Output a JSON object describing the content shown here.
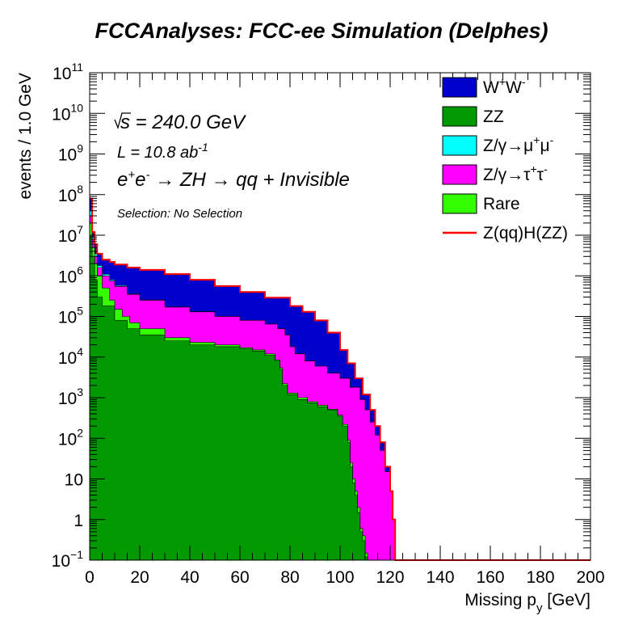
{
  "chart_data": {
    "type": "stacked-histogram",
    "title": "FCCAnalyses: FCC-ee Simulation (Delphes)",
    "xlabel": "Missing p",
    "xlabel_sub": "y",
    "xlabel_unit": " [GeV]",
    "ylabel": "events / 1.0 GeV",
    "yscale": "log",
    "xlim": [
      0,
      200
    ],
    "ylim": [
      0.1,
      100000000000
    ],
    "x_ticks": [
      "0",
      "20",
      "40",
      "60",
      "80",
      "100",
      "120",
      "140",
      "160",
      "180",
      "200"
    ],
    "y_ticks": [
      {
        "base": "10",
        "exp": "−1"
      },
      {
        "base": "1",
        "exp": ""
      },
      {
        "base": "10",
        "exp": ""
      },
      {
        "base": "10",
        "exp": "2"
      },
      {
        "base": "10",
        "exp": "3"
      },
      {
        "base": "10",
        "exp": "4"
      },
      {
        "base": "10",
        "exp": "5"
      },
      {
        "base": "10",
        "exp": "6"
      },
      {
        "base": "10",
        "exp": "7"
      },
      {
        "base": "10",
        "exp": "8"
      },
      {
        "base": "10",
        "exp": "9"
      },
      {
        "base": "10",
        "exp": "10"
      },
      {
        "base": "10",
        "exp": "11"
      }
    ],
    "annotations": {
      "sqrt_s": "s = 240.0 GeV",
      "lumi_prefix": "L = 10.8 ab",
      "lumi_exp": "-1",
      "process": "e",
      "process_sup1": "+",
      "process_mid": "e",
      "process_sup2": "-",
      "process_rest": " → ZH → qq + Invisible",
      "selection": "Selection: No Selection"
    },
    "legend_position": "top-right",
    "legend": [
      {
        "id": "ww",
        "label": "W",
        "sup1": "+",
        "mid": "W",
        "sup2": "-",
        "color": "#0000cc",
        "style": "fill"
      },
      {
        "id": "zz",
        "label": "ZZ",
        "color": "#009900",
        "style": "fill"
      },
      {
        "id": "zmumu",
        "label": "Z/γ→μ",
        "sup1": "+",
        "mid": "μ",
        "sup2": "-",
        "color": "#00ffff",
        "style": "fill"
      },
      {
        "id": "ztautau",
        "label": "Z/γ→τ",
        "sup1": "+",
        "mid": "τ",
        "sup2": "-",
        "color": "#ff00ff",
        "style": "fill"
      },
      {
        "id": "rare",
        "label": "Rare",
        "color": "#33ff00",
        "style": "fill"
      },
      {
        "id": "signal",
        "label": "Z(qq)H(ZZ)",
        "color": "#ff0000",
        "style": "line"
      }
    ],
    "series": [
      {
        "id": "zz",
        "color": "#009900",
        "points": [
          [
            0,
            10000000
          ],
          [
            1,
            3000000
          ],
          [
            2,
            800000
          ],
          [
            3,
            300000
          ],
          [
            5,
            180000
          ],
          [
            10,
            80000
          ],
          [
            15,
            50000
          ],
          [
            20,
            35000
          ],
          [
            30,
            25000
          ],
          [
            40,
            20000
          ],
          [
            50,
            18000
          ],
          [
            60,
            16000
          ],
          [
            65,
            14000
          ],
          [
            70,
            11000
          ],
          [
            74,
            8000
          ],
          [
            76,
            5000
          ],
          [
            77,
            2000
          ],
          [
            79,
            1200
          ],
          [
            83,
            900
          ],
          [
            87,
            750
          ],
          [
            91,
            600
          ],
          [
            95,
            500
          ],
          [
            99,
            350
          ],
          [
            101,
            200
          ],
          [
            103,
            80
          ],
          [
            104,
            20
          ],
          [
            105,
            8
          ],
          [
            106,
            4
          ],
          [
            107,
            1.5
          ],
          [
            108,
            0.5
          ],
          [
            109,
            0.3
          ],
          [
            110,
            0.12
          ],
          [
            111,
            0.1
          ]
        ]
      },
      {
        "id": "rare",
        "color": "#33ff00",
        "points": [
          [
            0,
            20000000
          ],
          [
            1,
            5000000
          ],
          [
            2,
            2000000
          ],
          [
            3,
            1000000
          ],
          [
            5,
            500000
          ],
          [
            8,
            250000
          ],
          [
            10,
            150000
          ],
          [
            13,
            100000
          ],
          [
            16,
            70000
          ],
          [
            20,
            50000
          ],
          [
            30,
            30000
          ],
          [
            40,
            23000
          ],
          [
            50,
            20000
          ],
          [
            60,
            17000
          ],
          [
            65,
            15000
          ],
          [
            70,
            12000
          ],
          [
            74,
            8500
          ],
          [
            76,
            5500
          ],
          [
            77,
            2200
          ],
          [
            79,
            1300
          ],
          [
            83,
            1000
          ],
          [
            87,
            800
          ],
          [
            91,
            650
          ],
          [
            95,
            520
          ],
          [
            99,
            370
          ],
          [
            101,
            220
          ],
          [
            103,
            90
          ],
          [
            104,
            25
          ],
          [
            105,
            10
          ],
          [
            106,
            5
          ],
          [
            107,
            2
          ],
          [
            108,
            0.6
          ],
          [
            109,
            0.4
          ],
          [
            110,
            0.15
          ],
          [
            111,
            0.1
          ]
        ]
      },
      {
        "id": "ztautau",
        "color": "#ff00ff",
        "points": [
          [
            0,
            30000000
          ],
          [
            1,
            8000000
          ],
          [
            2,
            3000000
          ],
          [
            3,
            1600000
          ],
          [
            5,
            1000000
          ],
          [
            8,
            750000
          ],
          [
            10,
            550000
          ],
          [
            15,
            350000
          ],
          [
            20,
            250000
          ],
          [
            30,
            170000
          ],
          [
            40,
            130000
          ],
          [
            50,
            100000
          ],
          [
            60,
            80000
          ],
          [
            70,
            65000
          ],
          [
            75,
            50000
          ],
          [
            78,
            35000
          ],
          [
            80,
            18000
          ],
          [
            82,
            12000
          ],
          [
            86,
            8000
          ],
          [
            90,
            6000
          ],
          [
            95,
            4000
          ],
          [
            100,
            3000
          ],
          [
            104,
            1800
          ],
          [
            108,
            900
          ],
          [
            110,
            500
          ],
          [
            112,
            250
          ],
          [
            114,
            120
          ],
          [
            116,
            50
          ],
          [
            118,
            15
          ],
          [
            120,
            5
          ],
          [
            121,
            1
          ],
          [
            122,
            0.1
          ]
        ]
      },
      {
        "id": "zmumu",
        "color": "#00ffff",
        "points": [
          [
            0,
            40000000
          ],
          [
            1,
            9000000
          ],
          [
            2,
            3500000
          ],
          [
            3,
            1800000
          ],
          [
            5,
            1100000
          ],
          [
            8,
            800000
          ],
          [
            10,
            580000
          ],
          [
            15,
            360000
          ],
          [
            20,
            255000
          ],
          [
            30,
            172000
          ],
          [
            40,
            131000
          ],
          [
            50,
            101000
          ],
          [
            60,
            80500
          ],
          [
            70,
            65300
          ],
          [
            75,
            50200
          ],
          [
            78,
            35100
          ],
          [
            80,
            18100
          ],
          [
            82,
            12050
          ],
          [
            86,
            8030
          ],
          [
            90,
            6020
          ],
          [
            95,
            4010
          ],
          [
            100,
            3005
          ],
          [
            104,
            1805
          ],
          [
            108,
            902
          ],
          [
            110,
            501
          ],
          [
            112,
            251
          ],
          [
            114,
            120
          ],
          [
            116,
            50
          ],
          [
            118,
            15
          ],
          [
            120,
            5
          ],
          [
            121,
            1
          ],
          [
            122,
            0.1
          ]
        ]
      },
      {
        "id": "ww",
        "color": "#0000cc",
        "points": [
          [
            0,
            80000000
          ],
          [
            1,
            12000000
          ],
          [
            2,
            6000000
          ],
          [
            3,
            3500000
          ],
          [
            5,
            2500000
          ],
          [
            8,
            2200000
          ],
          [
            10,
            1900000
          ],
          [
            15,
            1600000
          ],
          [
            20,
            1400000
          ],
          [
            30,
            1100000
          ],
          [
            40,
            800000
          ],
          [
            50,
            560000
          ],
          [
            60,
            400000
          ],
          [
            70,
            290000
          ],
          [
            80,
            180000
          ],
          [
            85,
            130000
          ],
          [
            90,
            80000
          ],
          [
            95,
            40000
          ],
          [
            100,
            15000
          ],
          [
            103,
            7000
          ],
          [
            106,
            3000
          ],
          [
            109,
            1200
          ],
          [
            112,
            500
          ],
          [
            114,
            200
          ],
          [
            116,
            80
          ],
          [
            118,
            20
          ],
          [
            120,
            5
          ],
          [
            121,
            1
          ],
          [
            122,
            0.1
          ]
        ]
      }
    ],
    "signal_line": {
      "id": "signal",
      "color": "#ff0000",
      "points": [
        [
          0,
          80000000
        ],
        [
          1,
          12000000
        ],
        [
          2,
          6000000
        ],
        [
          3,
          3500000
        ],
        [
          5,
          2500000
        ],
        [
          8,
          2200000
        ],
        [
          10,
          1900000
        ],
        [
          15,
          1600000
        ],
        [
          20,
          1400000
        ],
        [
          30,
          1100000
        ],
        [
          40,
          800000
        ],
        [
          50,
          560000
        ],
        [
          60,
          400000
        ],
        [
          70,
          290000
        ],
        [
          80,
          180000
        ],
        [
          85,
          130000
        ],
        [
          90,
          80000
        ],
        [
          95,
          40000
        ],
        [
          100,
          15000
        ],
        [
          103,
          7000
        ],
        [
          106,
          3000
        ],
        [
          109,
          1200
        ],
        [
          112,
          500
        ],
        [
          114,
          200
        ],
        [
          116,
          80
        ],
        [
          118,
          20
        ],
        [
          120,
          5
        ],
        [
          121,
          1
        ],
        [
          122,
          0.1
        ],
        [
          200,
          0.1
        ]
      ]
    }
  }
}
